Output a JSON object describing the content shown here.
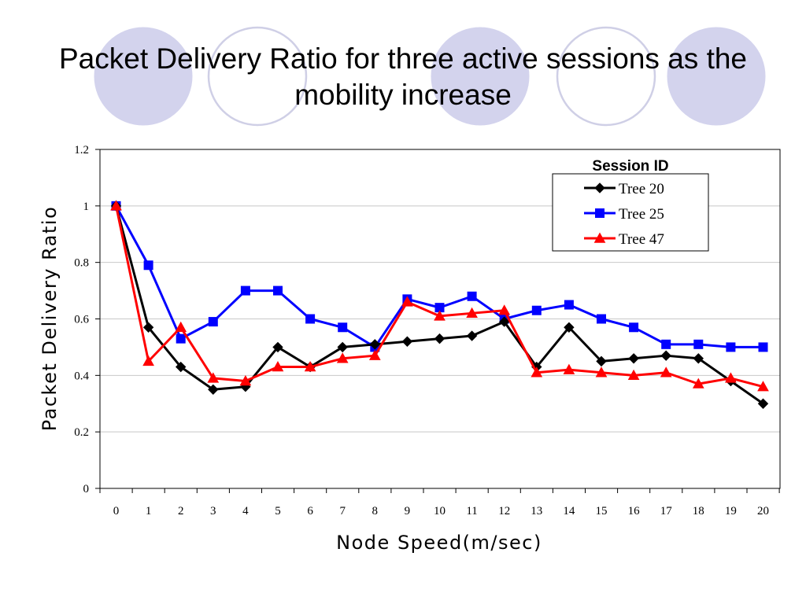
{
  "slide": {
    "title_lines": [
      "Packet Delivery Ratio for three active sessions as the",
      "mobility increase"
    ]
  },
  "theme": {
    "circle_fill": "#d3d3ed",
    "circle_stroke": "#d3d3ed",
    "outline_circle_stroke": "#cfcfe6",
    "plot_border": "#000000",
    "gridline": "#c8c8c8"
  },
  "chart_data": {
    "type": "line",
    "title": "",
    "xlabel": "Node  Speed(m/sec)",
    "ylabel": "Packet Delivery Ratio",
    "x": [
      0,
      1,
      2,
      3,
      4,
      5,
      6,
      7,
      8,
      9,
      10,
      11,
      12,
      13,
      14,
      15,
      16,
      17,
      18,
      19,
      20
    ],
    "x_tick_labels": [
      "0",
      "1",
      "2",
      "3",
      "4",
      "5",
      "6",
      "7",
      "8",
      "9",
      "10",
      "11",
      "12",
      "13",
      "14",
      "15",
      "16",
      "17",
      "18",
      "19",
      "20"
    ],
    "ylim": [
      0,
      1.2
    ],
    "y_ticks": [
      0,
      0.2,
      0.4,
      0.6,
      0.8,
      1,
      1.2
    ],
    "y_tick_labels": [
      "0",
      "0.2",
      "0.4",
      "0.6",
      "0.8",
      "1",
      "1.2"
    ],
    "grid": true,
    "legend": {
      "title": "Session ID",
      "placement": "top-right"
    },
    "series": [
      {
        "name": "Tree 20",
        "color": "#000000",
        "marker": "diamond",
        "values": [
          1.0,
          0.57,
          0.43,
          0.35,
          0.36,
          0.5,
          0.43,
          0.5,
          0.51,
          0.52,
          0.53,
          0.54,
          0.59,
          0.43,
          0.57,
          0.45,
          0.46,
          0.47,
          0.46,
          0.38,
          0.3
        ]
      },
      {
        "name": "Tree 25",
        "color": "#0000ff",
        "marker": "square",
        "values": [
          1.0,
          0.79,
          0.53,
          0.59,
          0.7,
          0.7,
          0.6,
          0.57,
          0.5,
          0.67,
          0.64,
          0.68,
          0.6,
          0.63,
          0.65,
          0.6,
          0.57,
          0.51,
          0.51,
          0.5,
          0.5
        ]
      },
      {
        "name": "Tree 47",
        "color": "#ff0000",
        "marker": "triangle",
        "values": [
          1.0,
          0.45,
          0.57,
          0.39,
          0.38,
          0.43,
          0.43,
          0.46,
          0.47,
          0.66,
          0.61,
          0.62,
          0.63,
          0.41,
          0.42,
          0.41,
          0.4,
          0.41,
          0.37,
          0.39,
          0.36
        ]
      }
    ]
  }
}
